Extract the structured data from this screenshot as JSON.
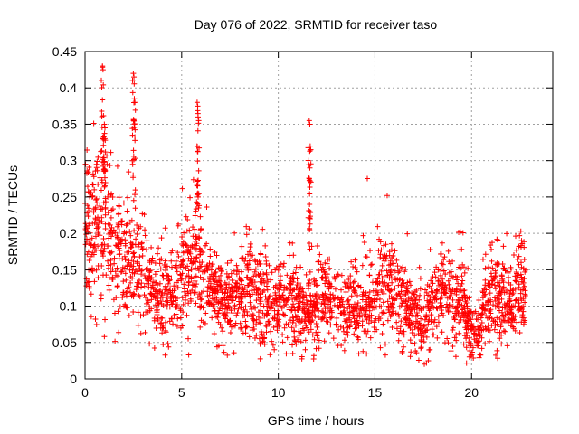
{
  "chart_data": {
    "type": "scatter",
    "title": "Day 076 of 2022, SRMTID for receiver taso",
    "xlabel": "GPS time / hours",
    "ylabel": "SRMTID / TECUs",
    "xlim": [
      0,
      24.2
    ],
    "ylim": [
      0,
      0.45
    ],
    "x_ticks": [
      "0",
      "5",
      "10",
      "15",
      "20"
    ],
    "x_tick_values": [
      0,
      5,
      10,
      15,
      20
    ],
    "y_ticks": [
      "0",
      "0.05",
      "0.1",
      "0.15",
      "0.2",
      "0.25",
      "0.3",
      "0.35",
      "0.4",
      "0.45"
    ],
    "y_tick_values": [
      0,
      0.05,
      0.1,
      0.15,
      0.2,
      0.25,
      0.3,
      0.35,
      0.4,
      0.45
    ],
    "grid": true,
    "marker": "+",
    "color": "#ff0000",
    "trend": [
      [
        0.0,
        0.2
      ],
      [
        0.5,
        0.21
      ],
      [
        1.0,
        0.21
      ],
      [
        1.5,
        0.17
      ],
      [
        2.0,
        0.15
      ],
      [
        2.5,
        0.15
      ],
      [
        3.0,
        0.14
      ],
      [
        3.5,
        0.12
      ],
      [
        4.0,
        0.11
      ],
      [
        4.5,
        0.11
      ],
      [
        5.0,
        0.13
      ],
      [
        5.5,
        0.16
      ],
      [
        6.0,
        0.14
      ],
      [
        6.5,
        0.12
      ],
      [
        7.0,
        0.1
      ],
      [
        7.5,
        0.1
      ],
      [
        8.0,
        0.11
      ],
      [
        8.5,
        0.13
      ],
      [
        9.0,
        0.11
      ],
      [
        9.5,
        0.1
      ],
      [
        10.0,
        0.1
      ],
      [
        10.5,
        0.11
      ],
      [
        11.0,
        0.1
      ],
      [
        11.5,
        0.09
      ],
      [
        12.0,
        0.1
      ],
      [
        12.5,
        0.11
      ],
      [
        13.0,
        0.1
      ],
      [
        13.5,
        0.09
      ],
      [
        14.0,
        0.09
      ],
      [
        14.5,
        0.1
      ],
      [
        15.0,
        0.11
      ],
      [
        15.5,
        0.13
      ],
      [
        16.0,
        0.12
      ],
      [
        16.5,
        0.1
      ],
      [
        17.0,
        0.09
      ],
      [
        17.5,
        0.07
      ],
      [
        18.0,
        0.1
      ],
      [
        18.5,
        0.12
      ],
      [
        19.0,
        0.1
      ],
      [
        19.5,
        0.1
      ],
      [
        20.0,
        0.06
      ],
      [
        20.5,
        0.08
      ],
      [
        21.0,
        0.11
      ],
      [
        21.5,
        0.11
      ],
      [
        22.0,
        0.1
      ],
      [
        22.5,
        0.12
      ],
      [
        22.8,
        0.11
      ]
    ],
    "spikes": [
      {
        "x": 0.9,
        "y": 0.43
      },
      {
        "x": 1.0,
        "y": 0.35
      },
      {
        "x": 2.5,
        "y": 0.42
      },
      {
        "x": 2.55,
        "y": 0.385
      },
      {
        "x": 5.8,
        "y": 0.38
      },
      {
        "x": 5.85,
        "y": 0.36
      },
      {
        "x": 11.6,
        "y": 0.355
      },
      {
        "x": 11.65,
        "y": 0.32
      }
    ]
  }
}
